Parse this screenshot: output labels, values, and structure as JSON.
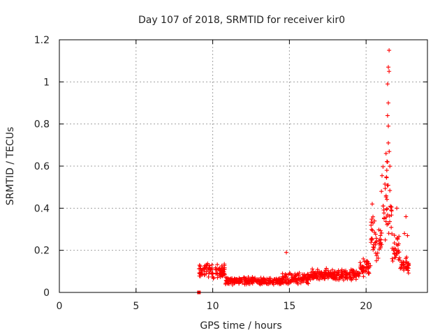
{
  "chart_data": {
    "type": "scatter",
    "title": "Day 107 of 2018, SRMTID for receiver kir0",
    "xlabel": "GPS time / hours",
    "ylabel": "SRMTID / TECUs",
    "xlim": [
      0,
      24
    ],
    "ylim": [
      0,
      1.2
    ],
    "x_ticks": [
      0,
      5,
      10,
      15,
      20
    ],
    "x_tick_labels": [
      "0",
      "5",
      "10",
      "15",
      "20"
    ],
    "y_ticks": [
      0,
      0.2,
      0.4,
      0.6,
      0.8,
      1.0,
      1.2
    ],
    "y_tick_labels": [
      "0",
      "0.2",
      "0.4",
      "0.6",
      "0.8",
      "1",
      "1.2"
    ],
    "grid": true,
    "marker": "+",
    "color": "#ff0000",
    "series": [
      {
        "name": "SRMTID",
        "marker": "+",
        "segments": [
          {
            "t_start": 9.1,
            "t_end": 10.8,
            "level": 0.1,
            "spread": 0.04
          },
          {
            "t_start": 10.8,
            "t_end": 14.5,
            "level": 0.055,
            "spread": 0.02
          },
          {
            "t_start": 14.5,
            "t_end": 16.3,
            "level": 0.065,
            "spread": 0.03
          },
          {
            "t_start": 16.3,
            "t_end": 19.6,
            "level": 0.085,
            "spread": 0.03
          },
          {
            "t_start": 19.6,
            "t_end": 20.3,
            "level": 0.12,
            "spread": 0.05
          },
          {
            "t_start": 20.3,
            "t_end": 21.0,
            "level": 0.25,
            "spread": 0.12
          },
          {
            "t_start": 21.0,
            "t_end": 21.7,
            "level": 0.45,
            "spread": 0.25
          },
          {
            "t_start": 21.7,
            "t_end": 22.2,
            "level": 0.2,
            "spread": 0.08
          },
          {
            "t_start": 22.2,
            "t_end": 22.8,
            "level": 0.13,
            "spread": 0.05
          }
        ],
        "notable_points": [
          {
            "x": 9.1,
            "y": 0.0
          },
          {
            "x": 14.8,
            "y": 0.19
          },
          {
            "x": 21.5,
            "y": 1.15
          },
          {
            "x": 21.45,
            "y": 1.07
          },
          {
            "x": 21.5,
            "y": 1.05
          },
          {
            "x": 21.4,
            "y": 0.99
          },
          {
            "x": 21.45,
            "y": 0.9
          },
          {
            "x": 21.4,
            "y": 0.84
          },
          {
            "x": 21.45,
            "y": 0.79
          },
          {
            "x": 21.45,
            "y": 0.71
          },
          {
            "x": 21.3,
            "y": 0.66
          },
          {
            "x": 21.4,
            "y": 0.62
          },
          {
            "x": 21.35,
            "y": 0.58
          },
          {
            "x": 21.0,
            "y": 0.48
          },
          {
            "x": 20.4,
            "y": 0.42
          },
          {
            "x": 22.0,
            "y": 0.4
          },
          {
            "x": 22.6,
            "y": 0.36
          },
          {
            "x": 22.7,
            "y": 0.27
          },
          {
            "x": 22.5,
            "y": 0.28
          }
        ]
      }
    ]
  }
}
